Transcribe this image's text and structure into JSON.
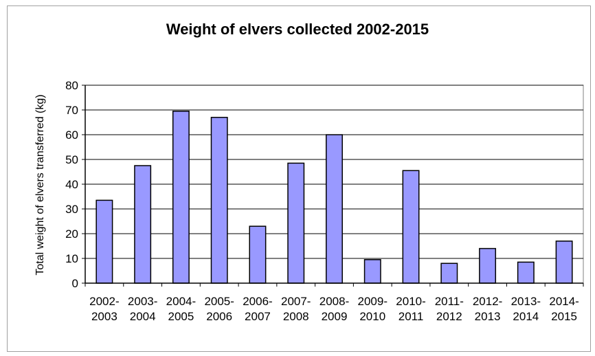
{
  "chart_data": {
    "type": "bar",
    "title": "Weight of elvers collected 2002-2015",
    "ylabel": "Total weight of elvers transferred (kg)",
    "xlabel": "",
    "ylim": [
      0,
      80
    ],
    "yticks": [
      0,
      10,
      20,
      30,
      40,
      50,
      60,
      70,
      80
    ],
    "grid": true,
    "categories": [
      [
        "2002-",
        "2003"
      ],
      [
        "2003-",
        "2004"
      ],
      [
        "2004-",
        "2005"
      ],
      [
        "2005-",
        "2006"
      ],
      [
        "2006-",
        "2007"
      ],
      [
        "2007-",
        "2008"
      ],
      [
        "2008-",
        "2009"
      ],
      [
        "2009-",
        "2010"
      ],
      [
        "2010-",
        "2011"
      ],
      [
        "2011-",
        "2012"
      ],
      [
        "2012-",
        "2013"
      ],
      [
        "2013-",
        "2014"
      ],
      [
        "2014-",
        "2015"
      ]
    ],
    "values": [
      33.5,
      47.5,
      69.5,
      67,
      23,
      48.5,
      60,
      9.5,
      45.5,
      8,
      14,
      8.5,
      17
    ],
    "bar_color": "#9999ff",
    "bar_edge": "#000000"
  }
}
